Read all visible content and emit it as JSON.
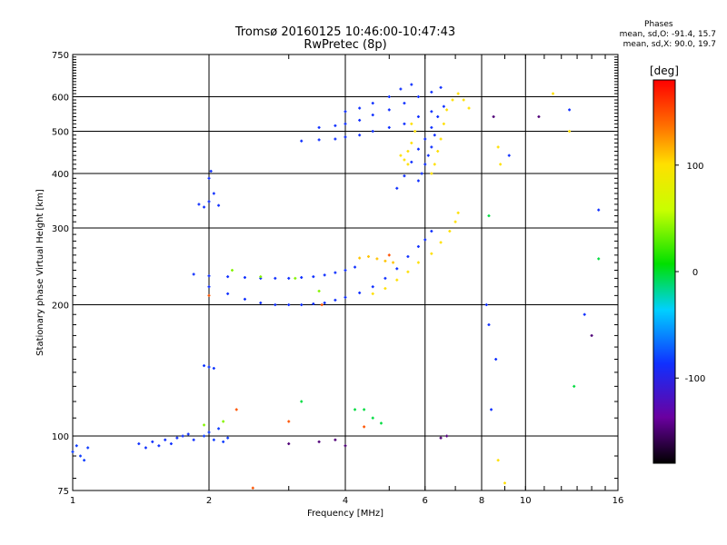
{
  "chart_data": {
    "type": "scatter",
    "title": "Tromsø 20160125 10:46:00-10:47:43",
    "subtitle": "RwPretec (8p)",
    "xlabel": "Frequency [MHz]",
    "ylabel": "Stationary phase Virtual Height [km]",
    "x_scale": "log",
    "y_scale": "log",
    "xlim": [
      1,
      16
    ],
    "ylim": [
      75,
      750
    ],
    "x_ticks": [
      1,
      2,
      4,
      6,
      8,
      10,
      16
    ],
    "y_ticks": [
      75,
      100,
      200,
      300,
      400,
      500,
      600,
      750
    ],
    "grid": true,
    "phase_stats": {
      "header": "Phases",
      "line_o": "mean, sd,O: -91.4, 15.7",
      "line_x": "mean, sd,X:  90.0, 19.7"
    },
    "colorbar": {
      "label": "[deg]",
      "range": [
        -180,
        180
      ],
      "ticks": [
        100,
        0,
        -100
      ]
    },
    "traces": [
      {
        "phase": -95,
        "points": [
          [
            1.0,
            92
          ],
          [
            1.02,
            95
          ],
          [
            1.04,
            90
          ],
          [
            1.06,
            88
          ],
          [
            1.08,
            94
          ]
        ]
      },
      {
        "phase": -100,
        "points": [
          [
            1.4,
            96
          ],
          [
            1.45,
            94
          ],
          [
            1.5,
            97
          ],
          [
            1.55,
            95
          ],
          [
            1.6,
            98
          ],
          [
            1.65,
            96
          ],
          [
            1.7,
            99
          ],
          [
            1.75,
            100
          ],
          [
            1.8,
            101
          ],
          [
            1.85,
            98
          ]
        ]
      },
      {
        "phase": -95,
        "points": [
          [
            1.95,
            100
          ],
          [
            2.0,
            102
          ],
          [
            2.05,
            98
          ],
          [
            2.1,
            104
          ],
          [
            2.15,
            97
          ],
          [
            2.2,
            99
          ]
        ]
      },
      {
        "phase": -100,
        "points": [
          [
            1.9,
            340
          ],
          [
            1.95,
            335
          ],
          [
            2.0,
            345
          ],
          [
            2.05,
            360
          ],
          [
            2.1,
            338
          ],
          [
            2.0,
            390
          ],
          [
            2.02,
            405
          ]
        ]
      },
      {
        "phase": -98,
        "points": [
          [
            1.95,
            145
          ],
          [
            2.0,
            144
          ],
          [
            2.05,
            143
          ]
        ]
      },
      {
        "phase": -100,
        "points": [
          [
            1.85,
            235
          ],
          [
            2.0,
            233
          ],
          [
            2.2,
            232
          ],
          [
            2.4,
            231
          ],
          [
            2.6,
            230
          ],
          [
            2.8,
            230
          ],
          [
            3.0,
            230
          ],
          [
            3.2,
            231
          ],
          [
            3.4,
            232
          ],
          [
            3.6,
            234
          ],
          [
            3.8,
            237
          ],
          [
            4.0,
            240
          ],
          [
            4.2,
            244
          ]
        ]
      },
      {
        "phase": -100,
        "points": [
          [
            2.0,
            220
          ],
          [
            2.2,
            212
          ],
          [
            2.4,
            206
          ],
          [
            2.6,
            202
          ],
          [
            2.8,
            200
          ],
          [
            3.0,
            200
          ],
          [
            3.2,
            200
          ],
          [
            3.4,
            201
          ],
          [
            3.6,
            202
          ],
          [
            3.8,
            205
          ],
          [
            4.0,
            208
          ],
          [
            4.3,
            213
          ],
          [
            4.6,
            220
          ],
          [
            4.9,
            230
          ],
          [
            5.2,
            242
          ],
          [
            5.5,
            258
          ],
          [
            5.8,
            272
          ],
          [
            6.0,
            282
          ],
          [
            6.2,
            295
          ]
        ]
      },
      {
        "phase": 100,
        "points": [
          [
            4.6,
            212
          ],
          [
            4.9,
            218
          ],
          [
            5.2,
            228
          ],
          [
            5.5,
            238
          ],
          [
            5.8,
            250
          ],
          [
            6.2,
            262
          ],
          [
            6.5,
            278
          ],
          [
            6.8,
            295
          ],
          [
            7.0,
            310
          ],
          [
            7.1,
            325
          ]
        ]
      },
      {
        "phase": 110,
        "points": [
          [
            4.3,
            256
          ],
          [
            4.5,
            258
          ],
          [
            4.7,
            255
          ],
          [
            4.9,
            252
          ],
          [
            5.1,
            250
          ]
        ]
      },
      {
        "phase": -100,
        "points": [
          [
            3.2,
            475
          ],
          [
            3.5,
            478
          ],
          [
            3.8,
            480
          ],
          [
            4.0,
            485
          ],
          [
            4.3,
            490
          ],
          [
            4.6,
            500
          ],
          [
            5.0,
            510
          ],
          [
            5.4,
            520
          ],
          [
            5.8,
            540
          ],
          [
            6.2,
            555
          ]
        ]
      },
      {
        "phase": -100,
        "points": [
          [
            3.5,
            510
          ],
          [
            3.8,
            515
          ],
          [
            4.0,
            520
          ],
          [
            4.3,
            530
          ],
          [
            4.6,
            545
          ],
          [
            5.0,
            560
          ],
          [
            5.4,
            580
          ],
          [
            5.8,
            600
          ],
          [
            6.2,
            615
          ],
          [
            6.5,
            630
          ]
        ]
      },
      {
        "phase": -100,
        "points": [
          [
            4.0,
            555
          ],
          [
            4.3,
            565
          ],
          [
            4.6,
            580
          ],
          [
            5.0,
            600
          ],
          [
            5.3,
            625
          ],
          [
            5.6,
            640
          ]
        ]
      },
      {
        "phase": -100,
        "points": [
          [
            5.2,
            370
          ],
          [
            5.4,
            395
          ],
          [
            5.6,
            425
          ],
          [
            5.8,
            455
          ],
          [
            6.0,
            480
          ],
          [
            6.2,
            510
          ],
          [
            6.4,
            540
          ],
          [
            6.6,
            570
          ]
        ]
      },
      {
        "phase": -100,
        "points": [
          [
            5.8,
            385
          ],
          [
            5.9,
            400
          ],
          [
            6.0,
            420
          ],
          [
            6.1,
            440
          ],
          [
            6.2,
            460
          ],
          [
            6.3,
            490
          ]
        ]
      },
      {
        "phase": 100,
        "points": [
          [
            5.4,
            430
          ],
          [
            5.5,
            450
          ],
          [
            5.6,
            470
          ],
          [
            5.7,
            500
          ],
          [
            5.6,
            520
          ],
          [
            5.5,
            420
          ],
          [
            5.3,
            440
          ]
        ]
      },
      {
        "phase": 100,
        "points": [
          [
            6.2,
            400
          ],
          [
            6.3,
            420
          ],
          [
            6.4,
            450
          ],
          [
            6.5,
            480
          ],
          [
            6.6,
            520
          ],
          [
            6.7,
            560
          ],
          [
            6.9,
            590
          ],
          [
            7.1,
            610
          ],
          [
            7.3,
            590
          ],
          [
            7.5,
            565
          ]
        ]
      },
      {
        "phase": 40,
        "points": [
          [
            2.25,
            240
          ],
          [
            2.6,
            232
          ],
          [
            3.1,
            230
          ],
          [
            3.5,
            215
          ],
          [
            1.95,
            106
          ],
          [
            2.15,
            108
          ]
        ]
      },
      {
        "phase": 150,
        "points": [
          [
            2.5,
            76
          ],
          [
            3.55,
            200
          ],
          [
            2.0,
            210
          ],
          [
            4.4,
            105
          ],
          [
            3.0,
            108
          ],
          [
            2.3,
            115
          ],
          [
            5.0,
            260
          ]
        ]
      },
      {
        "phase": -150,
        "points": [
          [
            3.0,
            96
          ],
          [
            3.5,
            97
          ],
          [
            3.8,
            98
          ],
          [
            4.0,
            95
          ],
          [
            6.5,
            99
          ],
          [
            6.7,
            100
          ],
          [
            8.5,
            540
          ],
          [
            10.7,
            540
          ],
          [
            14.0,
            170
          ]
        ]
      },
      {
        "phase": -10,
        "points": [
          [
            4.2,
            115
          ],
          [
            4.4,
            115
          ],
          [
            4.6,
            110
          ],
          [
            4.8,
            107
          ],
          [
            3.2,
            120
          ],
          [
            8.3,
            320
          ],
          [
            12.8,
            130
          ],
          [
            14.5,
            255
          ]
        ]
      },
      {
        "phase": -100,
        "points": [
          [
            8.3,
            180
          ],
          [
            8.6,
            150
          ],
          [
            8.4,
            115
          ],
          [
            9.2,
            440
          ],
          [
            8.2,
            200
          ],
          [
            12.5,
            560
          ],
          [
            14.5,
            330
          ],
          [
            13.5,
            190
          ]
        ]
      },
      {
        "phase": 100,
        "points": [
          [
            8.7,
            460
          ],
          [
            8.8,
            420
          ],
          [
            8.7,
            88
          ],
          [
            9.0,
            78
          ],
          [
            11.5,
            610
          ],
          [
            12.5,
            500
          ]
        ]
      }
    ]
  }
}
